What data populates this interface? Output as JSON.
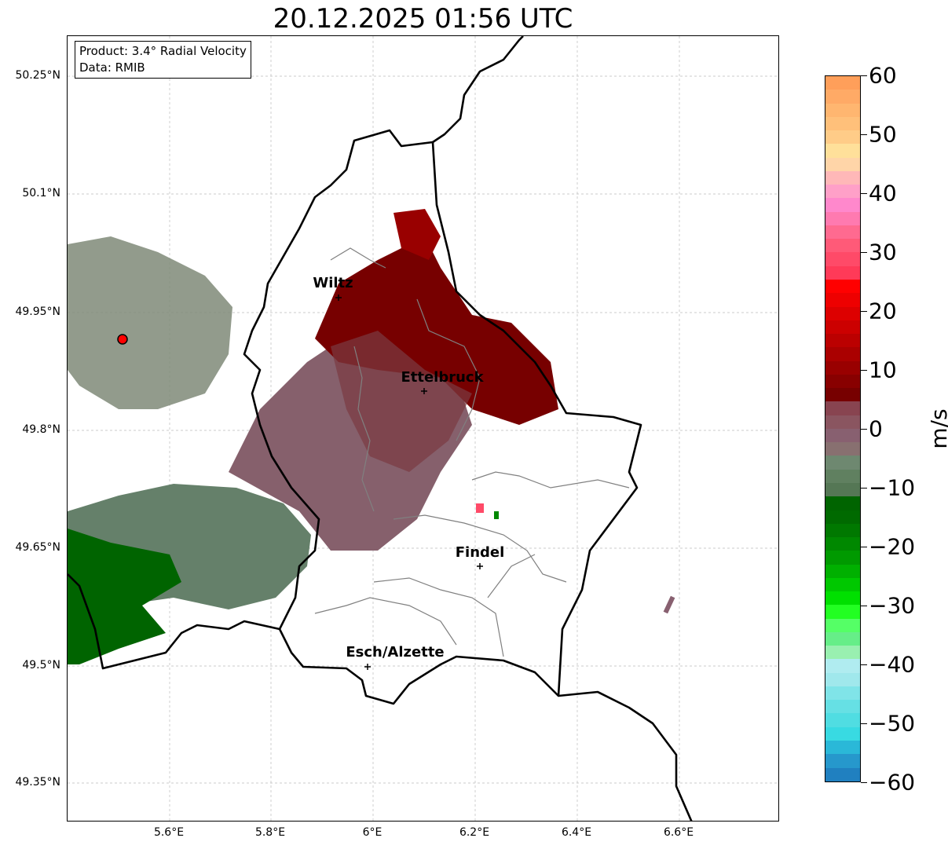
{
  "title": "20.12.2025 01:56 UTC",
  "info": {
    "product": "Product: 3.4° Radial Velocity",
    "source": "Data: RMIB"
  },
  "lat_labels": [
    "50.25°N",
    "50.1°N",
    "49.95°N",
    "49.8°N",
    "49.65°N",
    "49.5°N",
    "49.35°N"
  ],
  "lon_labels": [
    "5.6°E",
    "5.8°E",
    "6°E",
    "6.2°E",
    "6.4°E",
    "6.6°E"
  ],
  "cities": [
    {
      "name": "Wiltz"
    },
    {
      "name": "Ettelbruck"
    },
    {
      "name": "Findel"
    },
    {
      "name": "Esch/Alzette"
    }
  ],
  "colorbar": {
    "unit": "m/s",
    "min": -60,
    "max": 60,
    "tick_labels": [
      "60",
      "50",
      "40",
      "30",
      "20",
      "10",
      "0",
      "−10",
      "−20",
      "−30",
      "−40",
      "−50",
      "−60"
    ],
    "colors_top_to_bottom": [
      "#ff9f5a",
      "#ffaa66",
      "#ffb670",
      "#ffc07a",
      "#ffcc88",
      "#ffe09a",
      "#ffd5a8",
      "#ffb8b8",
      "#ffa0c8",
      "#ff88cc",
      "#ff7ab0",
      "#ff6a90",
      "#ff5a78",
      "#ff4a68",
      "#ff3a58",
      "#ff0000",
      "#ee0000",
      "#dd0000",
      "#cc0000",
      "#bb0000",
      "#aa0000",
      "#990000",
      "#880000",
      "#770000",
      "#884450",
      "#8a5560",
      "#886070",
      "#887070",
      "#6e8870",
      "#608060",
      "#557755",
      "#006400",
      "#006a00",
      "#007800",
      "#008800",
      "#009a00",
      "#00b000",
      "#00c800",
      "#00e000",
      "#22ff22",
      "#55ff66",
      "#66ee88",
      "#99f0b0",
      "#b0ecf0",
      "#a0e8ec",
      "#80e4e8",
      "#66e0e4",
      "#50dde2",
      "#38dae2",
      "#2ab8d8",
      "#2698cc",
      "#2080c0"
    ]
  },
  "colors": {
    "radar_site": "#ff0000",
    "border": "#000000",
    "canton": "#808080"
  }
}
